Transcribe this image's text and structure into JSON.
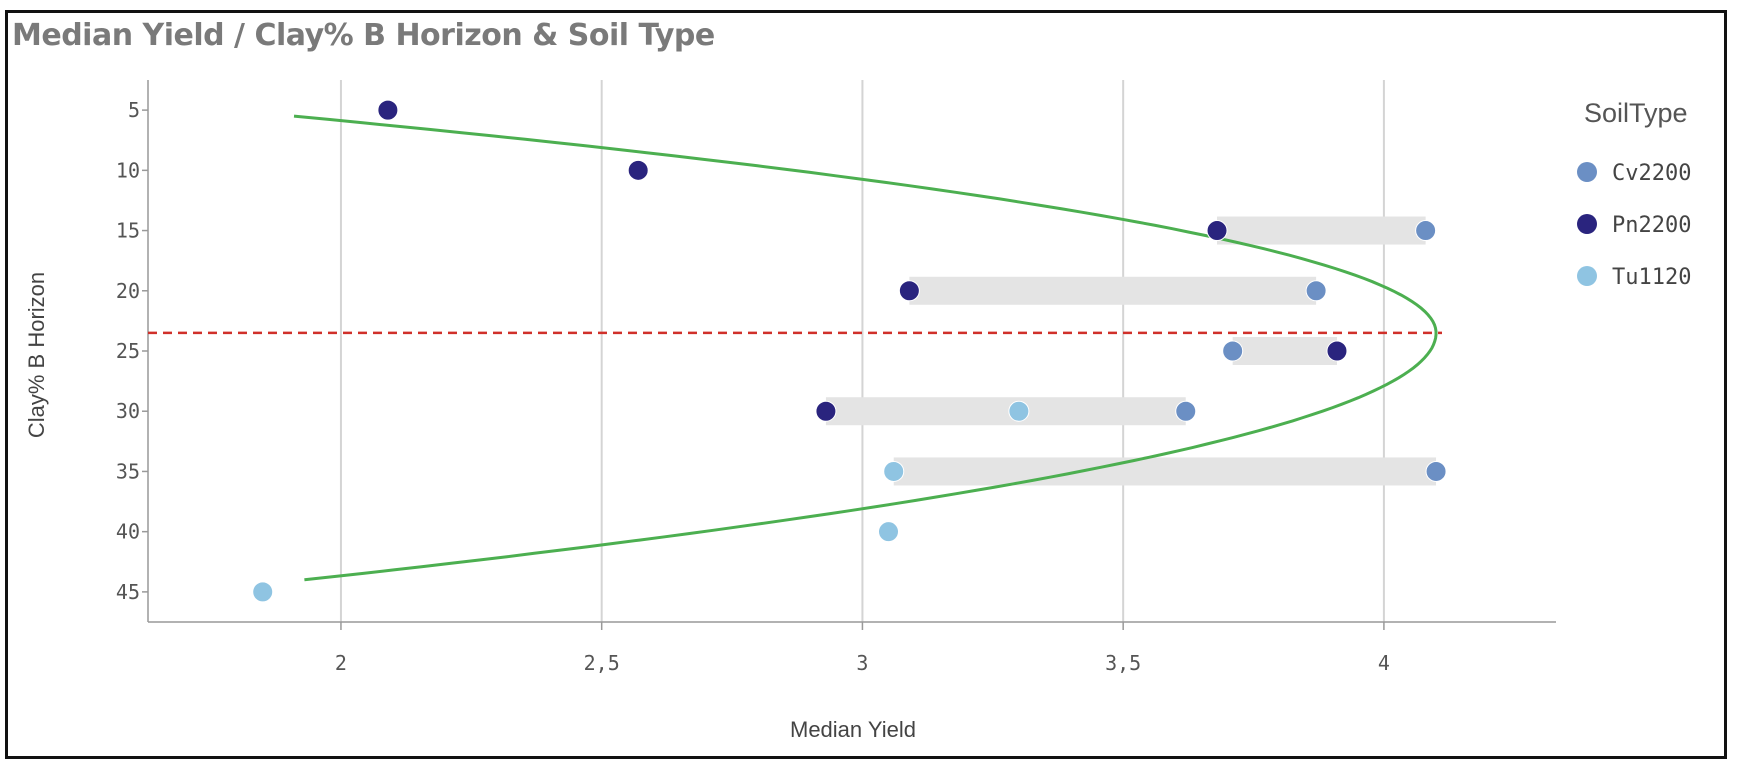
{
  "chart_data": {
    "type": "scatter",
    "title": "Median Yield / Clay% B Horizon & Soil Type",
    "xlabel": "Median Yield",
    "ylabel": "Clay% B Horizon",
    "xlim": [
      1.63,
      4.33
    ],
    "ylim": [
      47.5,
      2.5
    ],
    "y_reversed": true,
    "x_ticks": [
      2,
      2.5,
      3,
      3.5,
      4
    ],
    "x_tick_labels": [
      "2",
      "2,5",
      "3",
      "3,5",
      "4"
    ],
    "y_ticks": [
      5,
      10,
      15,
      20,
      25,
      30,
      35,
      40,
      45
    ],
    "y_tick_labels": [
      "5",
      "10",
      "15",
      "20",
      "25",
      "30",
      "35",
      "40",
      "45"
    ],
    "grid": "vertical",
    "legend": {
      "title": "SoilType",
      "position": "right"
    },
    "series": [
      {
        "name": "Cv2200",
        "color": "#6b8fc4",
        "points": [
          [
            4.08,
            15
          ],
          [
            3.87,
            20
          ],
          [
            3.71,
            25
          ],
          [
            3.62,
            30
          ],
          [
            4.1,
            35
          ]
        ]
      },
      {
        "name": "Pn2200",
        "color": "#2a247e",
        "points": [
          [
            2.09,
            5
          ],
          [
            2.57,
            10
          ],
          [
            3.68,
            15
          ],
          [
            3.09,
            20
          ],
          [
            3.91,
            25
          ],
          [
            2.93,
            30
          ]
        ]
      },
      {
        "name": "Tu1120",
        "color": "#8fc4e2",
        "points": [
          [
            3.3,
            30
          ],
          [
            3.06,
            35
          ],
          [
            3.05,
            40
          ],
          [
            1.85,
            45
          ]
        ]
      }
    ],
    "range_bars": [
      {
        "y": 15,
        "x_min": 3.68,
        "x_max": 4.08
      },
      {
        "y": 20,
        "x_min": 3.09,
        "x_max": 3.87
      },
      {
        "y": 25,
        "x_min": 3.71,
        "x_max": 3.91
      },
      {
        "y": 30,
        "x_min": 2.93,
        "x_max": 3.62
      },
      {
        "y": 35,
        "x_min": 3.06,
        "x_max": 4.1
      }
    ],
    "trend_curve": {
      "type": "quadratic",
      "color": "#4caf50",
      "vertex": [
        4.1,
        23.5
      ],
      "points": [
        [
          1.91,
          5.5
        ],
        [
          4.1,
          23.5
        ],
        [
          1.93,
          44
        ]
      ]
    },
    "reference_line": {
      "y": 23.5,
      "color": "#d0302a",
      "style": "dashed"
    }
  }
}
